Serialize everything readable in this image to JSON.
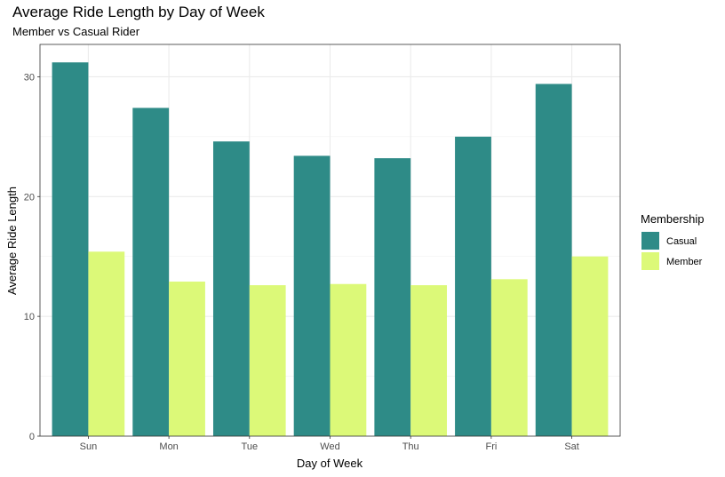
{
  "chart_data": {
    "type": "bar",
    "title": "Average Ride Length by Day of Week",
    "subtitle": "Member vs Casual Rider",
    "xlabel": "Day of Week",
    "ylabel": "Average Ride Length",
    "categories": [
      "Sun",
      "Mon",
      "Tue",
      "Wed",
      "Thu",
      "Fri",
      "Sat"
    ],
    "series": [
      {
        "name": "Casual",
        "color": "#2e8b87",
        "values": [
          31.2,
          27.4,
          24.6,
          23.4,
          23.2,
          25.0,
          29.4
        ]
      },
      {
        "name": "Member",
        "color": "#dcf978",
        "values": [
          15.4,
          12.9,
          12.6,
          12.7,
          12.6,
          13.1,
          15.0
        ]
      }
    ],
    "ylim": [
      0,
      32.7
    ],
    "yticks": [
      0,
      10,
      20,
      30
    ],
    "grid": true,
    "legend": {
      "title": "Membership",
      "position": "right"
    }
  }
}
